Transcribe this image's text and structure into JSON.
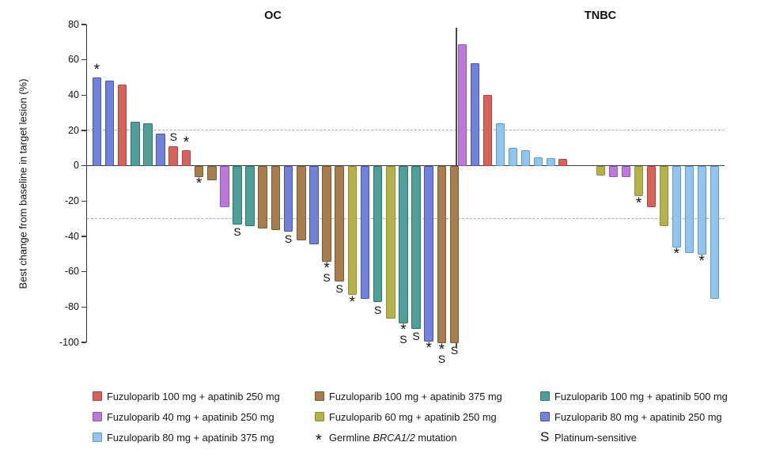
{
  "chart_data": {
    "type": "bar",
    "subtype": "waterfall",
    "title": "",
    "ylabel": "Best change from baseline in target lesion (%)",
    "xlabel": "",
    "ylim": [
      -100,
      80
    ],
    "yticks": [
      80,
      60,
      40,
      20,
      0,
      -20,
      -40,
      -60,
      -80,
      -100
    ],
    "reference_lines": [
      20,
      -30
    ],
    "grid": false,
    "group_colors": {
      "red": {
        "fill": "#d4645c",
        "border": "#bb3f3d"
      },
      "purple": {
        "fill": "#bb79d8",
        "border": "#9d4fc4"
      },
      "lightblue": {
        "fill": "#92c5ed",
        "border": "#5b9bd5"
      },
      "brown": {
        "fill": "#a87e50",
        "border": "#7d5833"
      },
      "olive": {
        "fill": "#b5b14c",
        "border": "#919031"
      },
      "teal": {
        "fill": "#4f9e97",
        "border": "#2f756e"
      },
      "blueviolet": {
        "fill": "#7382d9",
        "border": "#4353c6"
      }
    },
    "panels": [
      {
        "name": "OC",
        "bars": [
          {
            "v": 50,
            "g": "blueviolet",
            "brca": true
          },
          {
            "v": 48,
            "g": "blueviolet"
          },
          {
            "v": 46,
            "g": "red"
          },
          {
            "v": 25,
            "g": "teal"
          },
          {
            "v": 24,
            "g": "teal"
          },
          {
            "v": 18,
            "g": "blueviolet"
          },
          {
            "v": 11,
            "g": "red",
            "ps": true
          },
          {
            "v": 9,
            "g": "red",
            "brca": true
          },
          {
            "v": -6,
            "g": "brown",
            "brca": true
          },
          {
            "v": -8,
            "g": "brown"
          },
          {
            "v": -23,
            "g": "purple"
          },
          {
            "v": -33,
            "g": "teal",
            "ps": true
          },
          {
            "v": -34,
            "g": "teal"
          },
          {
            "v": -35,
            "g": "brown"
          },
          {
            "v": -36,
            "g": "brown"
          },
          {
            "v": -37,
            "g": "blueviolet",
            "ps": true
          },
          {
            "v": -42,
            "g": "brown"
          },
          {
            "v": -44,
            "g": "blueviolet"
          },
          {
            "v": -54,
            "g": "brown",
            "brca": true,
            "ps": true
          },
          {
            "v": -65,
            "g": "brown",
            "ps": true
          },
          {
            "v": -73,
            "g": "olive",
            "brca": true
          },
          {
            "v": -75,
            "g": "blueviolet"
          },
          {
            "v": -77,
            "g": "teal",
            "ps": true
          },
          {
            "v": -86,
            "g": "olive"
          },
          {
            "v": -89,
            "g": "teal",
            "brca": true,
            "ps": true
          },
          {
            "v": -92,
            "g": "teal",
            "ps": true
          },
          {
            "v": -99,
            "g": "blueviolet",
            "brca": true
          },
          {
            "v": -100,
            "g": "brown",
            "brca": true,
            "ps": true
          },
          {
            "v": -100,
            "g": "brown",
            "ps": true
          }
        ]
      },
      {
        "name": "TNBC",
        "bars": [
          {
            "v": 69,
            "g": "purple"
          },
          {
            "v": 58,
            "g": "blueviolet"
          },
          {
            "v": 40,
            "g": "red"
          },
          {
            "v": 24,
            "g": "lightblue"
          },
          {
            "v": 10,
            "g": "lightblue"
          },
          {
            "v": 9,
            "g": "lightblue"
          },
          {
            "v": 5,
            "g": "lightblue"
          },
          {
            "v": 4.5,
            "g": "lightblue"
          },
          {
            "v": 4,
            "g": "red"
          },
          {
            "v": 0,
            "g": null
          },
          {
            "v": 0,
            "g": null
          },
          {
            "v": -5,
            "g": "olive"
          },
          {
            "v": -6,
            "g": "purple"
          },
          {
            "v": -6,
            "g": "purple"
          },
          {
            "v": -17,
            "g": "olive",
            "brca": true
          },
          {
            "v": -23,
            "g": "red"
          },
          {
            "v": -34,
            "g": "olive"
          },
          {
            "v": -46,
            "g": "lightblue",
            "brca": true
          },
          {
            "v": -49,
            "g": "lightblue"
          },
          {
            "v": -50,
            "g": "lightblue",
            "brca": true
          },
          {
            "v": -75,
            "g": "lightblue"
          }
        ]
      }
    ]
  },
  "legend": {
    "columns": [
      [
        {
          "kind": "swatch",
          "group": "red",
          "label": "Fuzuloparib 100 mg + apatinib 250 mg"
        },
        {
          "kind": "swatch",
          "group": "purple",
          "label": "Fuzuloparib 40 mg + apatinib 250 mg"
        },
        {
          "kind": "swatch",
          "group": "lightblue",
          "label": "Fuzuloparib 80 mg + apatinib 375 mg"
        }
      ],
      [
        {
          "kind": "swatch",
          "group": "brown",
          "label": "Fuzuloparib 100 mg + apatinib 375 mg"
        },
        {
          "kind": "swatch",
          "group": "olive",
          "label": "Fuzuloparib 60 mg + apatinib 250 mg"
        },
        {
          "kind": "symbol",
          "symbol": "*",
          "label": "Germline BRCA1/2 mutation",
          "label_parts": [
            {
              "t": "Germline "
            },
            {
              "t": "BRCA1/2",
              "italic": true
            },
            {
              "t": " mutation"
            }
          ]
        }
      ],
      [
        {
          "kind": "swatch",
          "group": "teal",
          "label": "Fuzuloparib 100 mg + apatinib 500 mg"
        },
        {
          "kind": "swatch",
          "group": "blueviolet",
          "label": "Fuzuloparib 80 mg + apatinib 250 mg"
        },
        {
          "kind": "symbol",
          "symbol": "S",
          "label": "Platinum-sensitive"
        }
      ]
    ]
  }
}
